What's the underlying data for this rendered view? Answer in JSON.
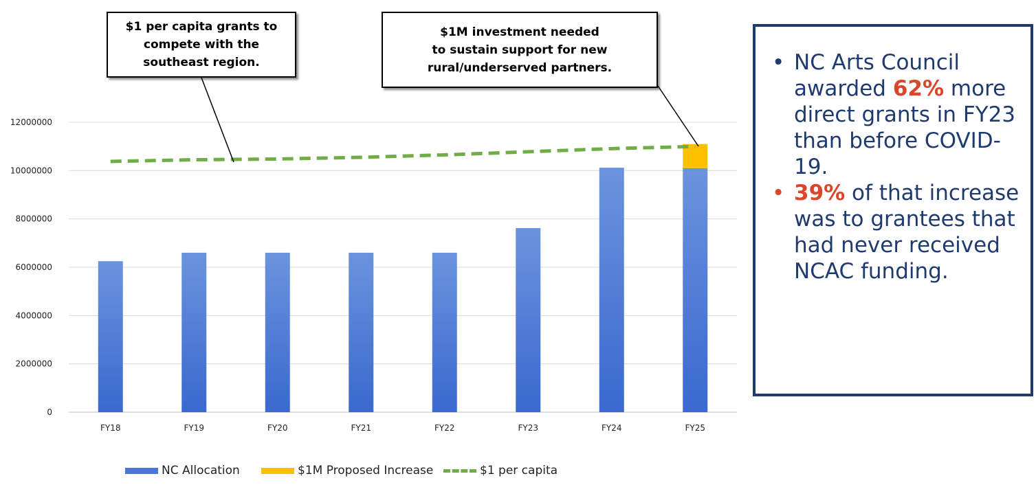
{
  "chart_data": {
    "type": "bar",
    "stacked": true,
    "categories": [
      "FY18",
      "FY19",
      "FY20",
      "FY21",
      "FY22",
      "FY23",
      "FY24",
      "FY25"
    ],
    "series": [
      {
        "name": "NC Allocation",
        "kind": "bar",
        "color": "#4a77d6",
        "values": [
          6250000,
          6600000,
          6600000,
          6600000,
          6600000,
          7620000,
          10120000,
          10100000
        ]
      },
      {
        "name": "$1M Proposed Increase",
        "kind": "bar",
        "color": "#ffc000",
        "values": [
          0,
          0,
          0,
          0,
          0,
          0,
          0,
          1000000
        ]
      },
      {
        "name": "$1 per capita",
        "kind": "line",
        "style": "dashed",
        "color": "#70ad47",
        "values": [
          10380000,
          10450000,
          10480000,
          10550000,
          10650000,
          10780000,
          10910000,
          11000000
        ]
      }
    ],
    "yticks": [
      0,
      2000000,
      4000000,
      6000000,
      8000000,
      10000000,
      12000000
    ],
    "ylim": [
      0,
      12000000
    ],
    "grid": true,
    "legend_position": "bottom"
  },
  "annotations": [
    {
      "lines": [
        "$1 per capita grants to",
        "compete with the",
        "southeast region."
      ]
    },
    {
      "lines": [
        "$1M investment needed",
        "to sustain support for new",
        "rural/underserved partners."
      ]
    }
  ],
  "legend": [
    {
      "label": "NC Allocation",
      "color": "#4a77d6"
    },
    {
      "label": "$1M Proposed Increase",
      "color": "#ffc000"
    },
    {
      "label": "$1 per capita",
      "color": "#70ad47"
    }
  ],
  "panel": {
    "bullets": [
      {
        "before": "NC Arts Council awarded ",
        "highlight": "62%",
        "after": " more direct grants in FY23 than before COVID-19."
      },
      {
        "before": "",
        "highlight": "39%",
        "after": " of that increase was to grantees that had never received NCAC funding."
      }
    ],
    "border_color": "#1f3a6e",
    "text_color": "#1f3a6e",
    "highlight_color": "#d9462b"
  }
}
